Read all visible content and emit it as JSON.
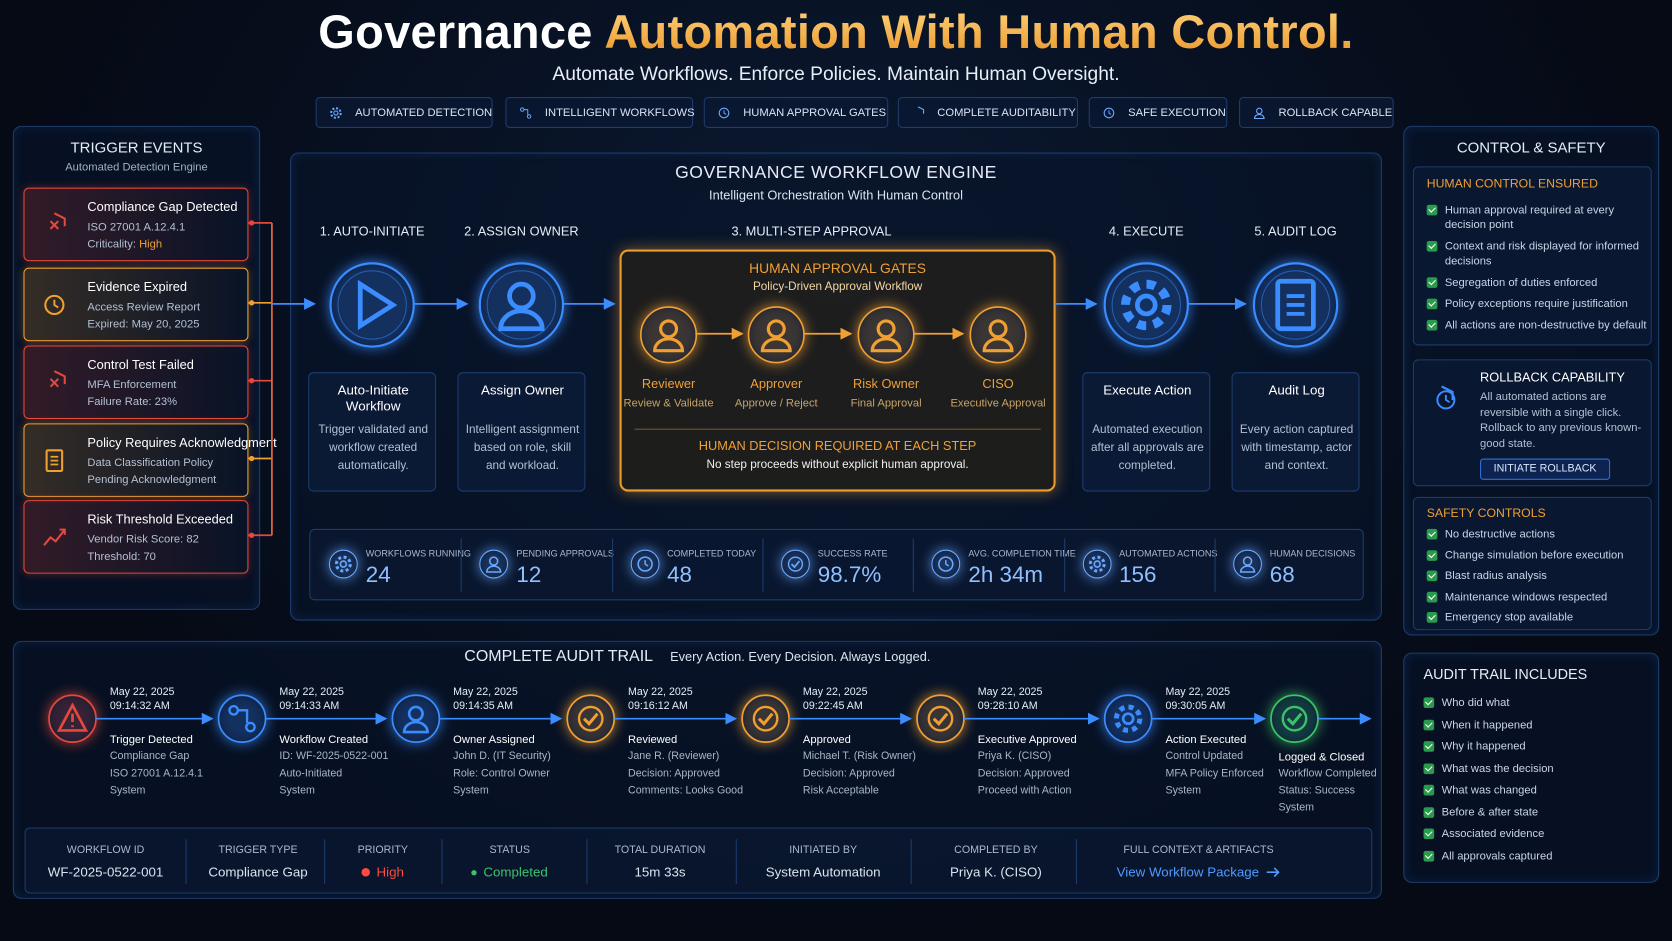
{
  "header": {
    "title_lead": "Governance",
    "title_accent": "Automation With Human Control.",
    "subtitle": "Automate Workflows. Enforce Policies. Maintain Human Oversight."
  },
  "features": [
    "AUTOMATED DETECTION",
    "INTELLIGENT WORKFLOWS",
    "HUMAN APPROVAL GATES",
    "COMPLETE AUDITABILITY",
    "SAFE EXECUTION",
    "ROLLBACK CAPABLE"
  ],
  "triggers": {
    "title": "TRIGGER EVENTS",
    "subtitle": "Automated Detection Engine",
    "events": [
      {
        "title": "Compliance Gap Detected",
        "details": [
          "ISO 27001 A.12.4.1",
          "Criticality:"
        ],
        "highlight": "High",
        "color": "#e5483c"
      },
      {
        "title": "Evidence Expired",
        "details": [
          "Access Review Report",
          "Expired: May 20, 2025"
        ],
        "color": "#f0a033"
      },
      {
        "title": "Control Test Failed",
        "details": [
          "MFA Enforcement",
          "Failure Rate: 23%"
        ],
        "color": "#e5483c"
      },
      {
        "title": "Policy Requires Acknowledgment",
        "details": [
          "Data Classification Policy",
          "Pending Acknowledgment"
        ],
        "color": "#f0a033"
      },
      {
        "title": "Risk Threshold Exceeded",
        "details": [
          "Vendor Risk Score: 82",
          "Threshold: 70"
        ],
        "color": "#e5483c"
      }
    ]
  },
  "engine": {
    "title": "GOVERNANCE WORKFLOW ENGINE",
    "subtitle": "Intelligent Orchestration With Human Control",
    "steps": [
      {
        "label": "1. AUTO-INITIATE",
        "card_title": "Auto-Initiate Workflow",
        "card_text": "Trigger validated and workflow created automatically."
      },
      {
        "label": "2. ASSIGN OWNER",
        "card_title": "Assign Owner",
        "card_text": "Intelligent assignment based on role, skill and workload."
      },
      {
        "label": "4. EXECUTE",
        "card_title": "Execute Action",
        "card_text": "Automated execution after all approvals are completed."
      },
      {
        "label": "5. AUDIT LOG",
        "card_title": "Audit Log",
        "card_text": "Every action captured with timestamp, actor and context."
      }
    ],
    "approval": {
      "label": "3. MULTI-STEP APPROVAL",
      "title": "HUMAN APPROVAL GATES",
      "subtitle": "Policy-Driven Approval Workflow",
      "approvers": [
        {
          "role": "Reviewer",
          "action": "Review & Validate"
        },
        {
          "role": "Approver",
          "action": "Approve / Reject"
        },
        {
          "role": "Risk Owner",
          "action": "Final Approval"
        },
        {
          "role": "CISO",
          "action": "Executive Approval"
        }
      ],
      "decision_title": "HUMAN DECISION REQUIRED AT EACH STEP",
      "decision_text": "No step proceeds without explicit human approval."
    },
    "metrics": [
      {
        "label": "WORKFLOWS RUNNING",
        "value": 24
      },
      {
        "label": "PENDING APPROVALS",
        "value": 12
      },
      {
        "label": "COMPLETED TODAY",
        "value": 48
      },
      {
        "label": "SUCCESS RATE",
        "value": "98.7%"
      },
      {
        "label": "AVG. COMPLETION TIME",
        "value": "2h 34m"
      },
      {
        "label": "AUTOMATED ACTIONS",
        "value": 156
      },
      {
        "label": "HUMAN DECISIONS",
        "value": 68
      }
    ]
  },
  "control": {
    "title": "CONTROL & SAFETY",
    "human_control": {
      "title": "HUMAN CONTROL ENSURED",
      "items": [
        "Human approval required at every decision point",
        "Context and risk displayed for informed decisions",
        "Segregation of duties enforced",
        "Policy exceptions require justification",
        "All actions are non-destructive by default"
      ]
    },
    "rollback": {
      "title": "ROLLBACK CAPABILITY",
      "text": "All automated actions are reversible with a single click. Rollback to any previous known-good state.",
      "button": "INITIATE ROLLBACK"
    },
    "safety": {
      "title": "SAFETY CONTROLS",
      "items": [
        "No destructive actions",
        "Change simulation before execution",
        "Blast radius analysis",
        "Maintenance windows respected",
        "Emergency stop available"
      ]
    }
  },
  "audit_includes": {
    "title": "AUDIT TRAIL INCLUDES",
    "items": [
      "Who did what",
      "When it happened",
      "Why it happened",
      "What was the decision",
      "What was changed",
      "Before & after state",
      "Associated evidence",
      "All approvals captured"
    ]
  },
  "audit_trail": {
    "title": "COMPLETE AUDIT TRAIL",
    "tagline": "Every Action. Every Decision. Always Logged.",
    "events": [
      {
        "date": "May 22, 2025",
        "time": "09:14:32 AM",
        "title": "Trigger Detected",
        "lines": [
          "Compliance Gap",
          "ISO 27001 A.12.4.1",
          "System"
        ],
        "color": "#e5483c"
      },
      {
        "date": "May 22, 2025",
        "time": "09:14:33 AM",
        "title": "Workflow Created",
        "lines": [
          "ID: WF-2025-0522-001",
          "Auto-Initiated",
          "System"
        ],
        "color": "#3b8cff"
      },
      {
        "date": "May 22, 2025",
        "time": "09:14:35 AM",
        "title": "Owner Assigned",
        "lines": [
          "John D. (IT Security)",
          "Role: Control Owner",
          "System"
        ],
        "color": "#3b8cff"
      },
      {
        "date": "May 22, 2025",
        "time": "09:16:12 AM",
        "title": "Reviewed",
        "lines": [
          "Jane R. (Reviewer)",
          "Decision: Approved",
          "Comments: Looks Good"
        ],
        "color": "#f0a033"
      },
      {
        "date": "May 22, 2025",
        "time": "09:22:45 AM",
        "title": "Approved",
        "lines": [
          "Michael T. (Risk Owner)",
          "Decision: Approved",
          "Risk Acceptable"
        ],
        "color": "#f0a033"
      },
      {
        "date": "May 22, 2025",
        "time": "09:28:10 AM",
        "title": "Executive Approved",
        "lines": [
          "Priya K. (CISO)",
          "Decision: Approved",
          "Proceed with Action"
        ],
        "color": "#f0a033"
      },
      {
        "date": "May 22, 2025",
        "time": "09:30:05 AM",
        "title": "Action Executed",
        "lines": [
          "Control Updated",
          "MFA Policy Enforced",
          "System"
        ],
        "color": "#3b8cff"
      },
      {
        "title": "Logged & Closed",
        "lines": [
          "Workflow Completed",
          "Status: Success",
          "System"
        ],
        "color": "#3cc36a"
      }
    ],
    "summary": [
      {
        "label": "WORKFLOW ID",
        "value": "WF-2025-0522-001"
      },
      {
        "label": "TRIGGER TYPE",
        "value": "Compliance Gap"
      },
      {
        "label": "PRIORITY",
        "value": "High",
        "color": "#ff4a3d"
      },
      {
        "label": "STATUS",
        "value": "Completed",
        "color": "#3cc36a"
      },
      {
        "label": "TOTAL DURATION",
        "value": "15m 33s"
      },
      {
        "label": "INITIATED BY",
        "value": "System Automation"
      },
      {
        "label": "COMPLETED BY",
        "value": "Priya K. (CISO)"
      },
      {
        "label": "FULL CONTEXT & ARTIFACTS",
        "value": "View Workflow Package",
        "link": true
      }
    ]
  }
}
